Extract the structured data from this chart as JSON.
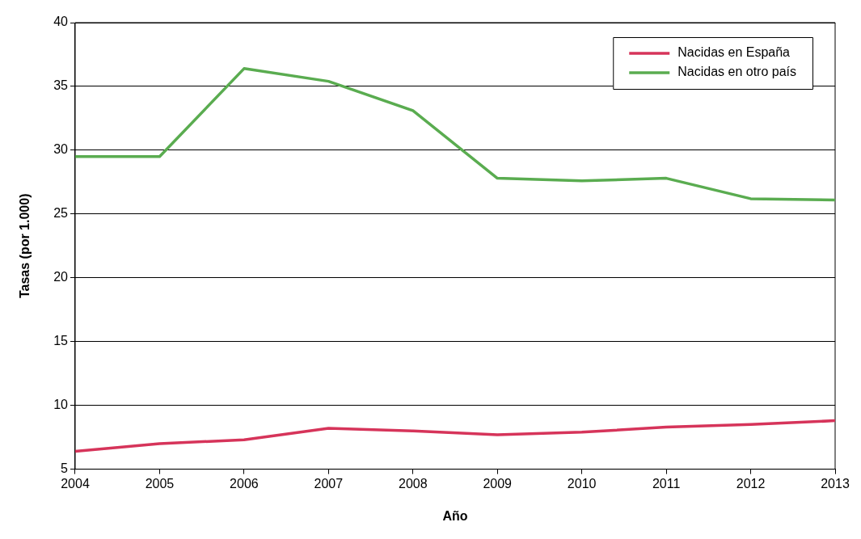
{
  "chart_data": {
    "type": "line",
    "xlabel": "Año",
    "ylabel": "Tasas (por 1.000)",
    "x": [
      2004,
      2005,
      2006,
      2007,
      2008,
      2009,
      2010,
      2011,
      2012,
      2013
    ],
    "series": [
      {
        "name": "Nacidas en España",
        "color": "#d6345a",
        "values": [
          6.4,
          7.0,
          7.3,
          8.2,
          8.0,
          7.7,
          7.9,
          8.3,
          8.5,
          8.8
        ]
      },
      {
        "name": "Nacidas en otro país",
        "color": "#5aac50",
        "values": [
          29.5,
          29.5,
          36.4,
          35.4,
          33.1,
          27.8,
          27.6,
          27.8,
          26.2,
          26.1
        ]
      }
    ],
    "xlim": [
      2004,
      2013
    ],
    "xticks": [
      2004,
      2005,
      2006,
      2007,
      2008,
      2009,
      2010,
      2011,
      2012,
      2013
    ],
    "ylim": [
      5,
      40
    ],
    "yticks": [
      5,
      10,
      15,
      20,
      25,
      30,
      35,
      40
    ],
    "grid": "y",
    "legend": "top right",
    "marker": "none",
    "line_style": "solid"
  }
}
